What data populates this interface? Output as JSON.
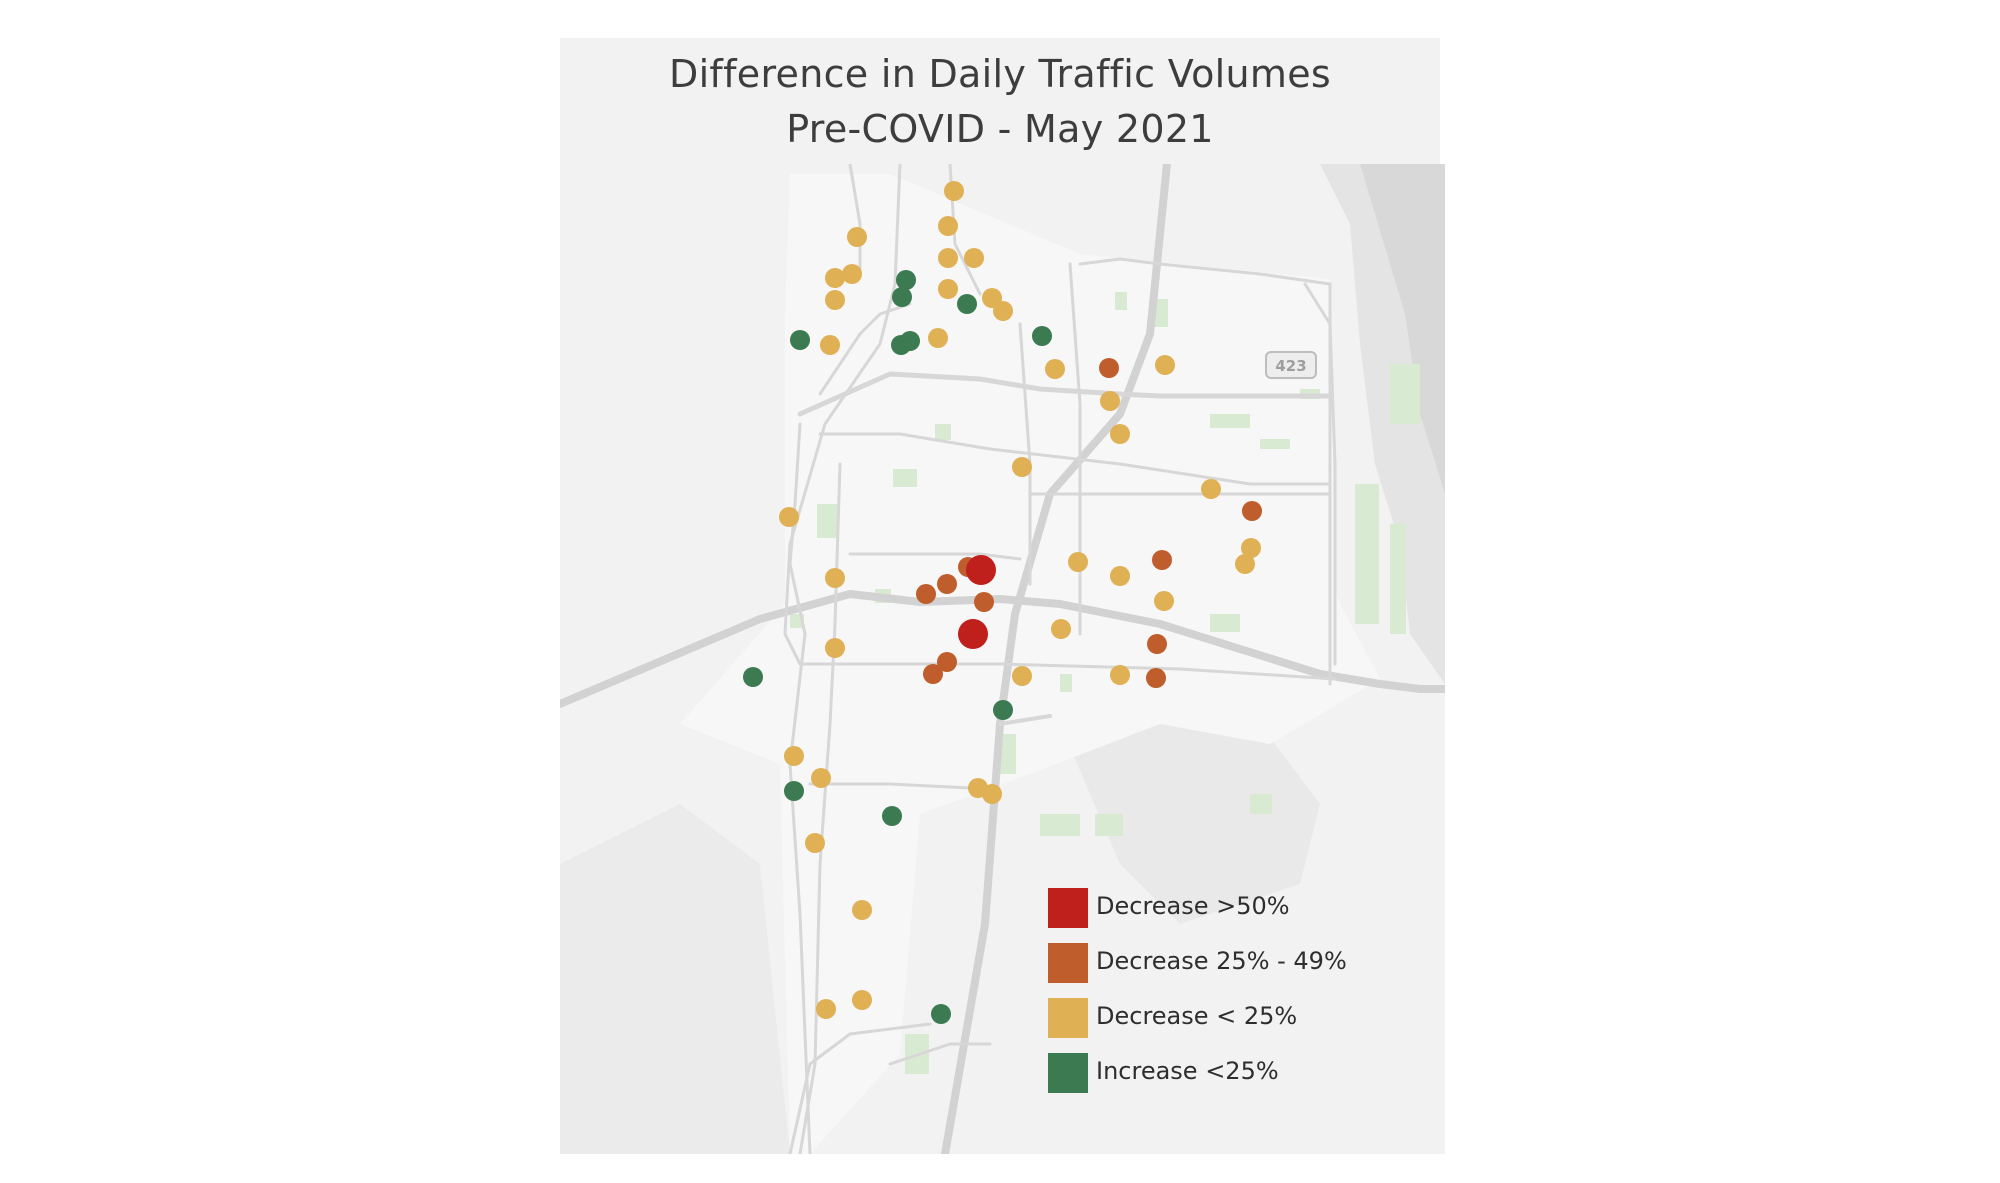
{
  "title": {
    "line1": "Difference in Daily Traffic Volumes",
    "line2": "Pre-COVID - May 2021"
  },
  "route_marker": "423",
  "colors": {
    "decrease_gt50": "#c0201b",
    "decrease_25_49": "#bf5d2c",
    "decrease_lt25": "#e0b055",
    "increase_lt25": "#3c7a52",
    "background": "#f2f2f2",
    "road": "#d9d9d9",
    "park": "#d9ead3"
  },
  "legend": [
    {
      "key": "decrease_gt50",
      "label": "Decrease >50%",
      "color": "#c0201b"
    },
    {
      "key": "decrease_25_49",
      "label": "Decrease 25% - 49%",
      "color": "#bf5d2c"
    },
    {
      "key": "decrease_lt25",
      "label": "Decrease < 25%",
      "color": "#e0b055"
    },
    {
      "key": "increase_lt25",
      "label": "Increase <25%",
      "color": "#3c7a52"
    }
  ]
}
